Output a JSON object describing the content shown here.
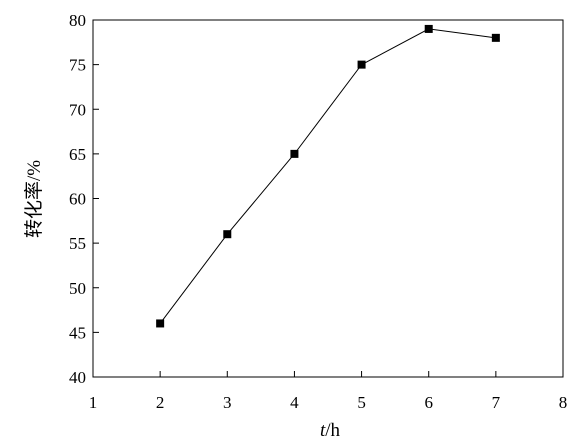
{
  "chart_data": {
    "type": "line",
    "title": "",
    "xlabel_italic": "t",
    "xlabel_rest": "/h",
    "ylabel": "转化率/%",
    "xlim": [
      1,
      8
    ],
    "ylim": [
      40,
      80
    ],
    "xticks": [
      1,
      2,
      3,
      4,
      5,
      6,
      7,
      8
    ],
    "yticks": [
      40,
      45,
      50,
      55,
      60,
      65,
      70,
      75,
      80
    ],
    "grid": false,
    "marker": "square",
    "line_color": "#000000",
    "series": [
      {
        "x": [
          2,
          3,
          4,
          5,
          6,
          7
        ],
        "y": [
          46,
          56,
          65,
          75,
          79,
          78
        ]
      }
    ]
  }
}
